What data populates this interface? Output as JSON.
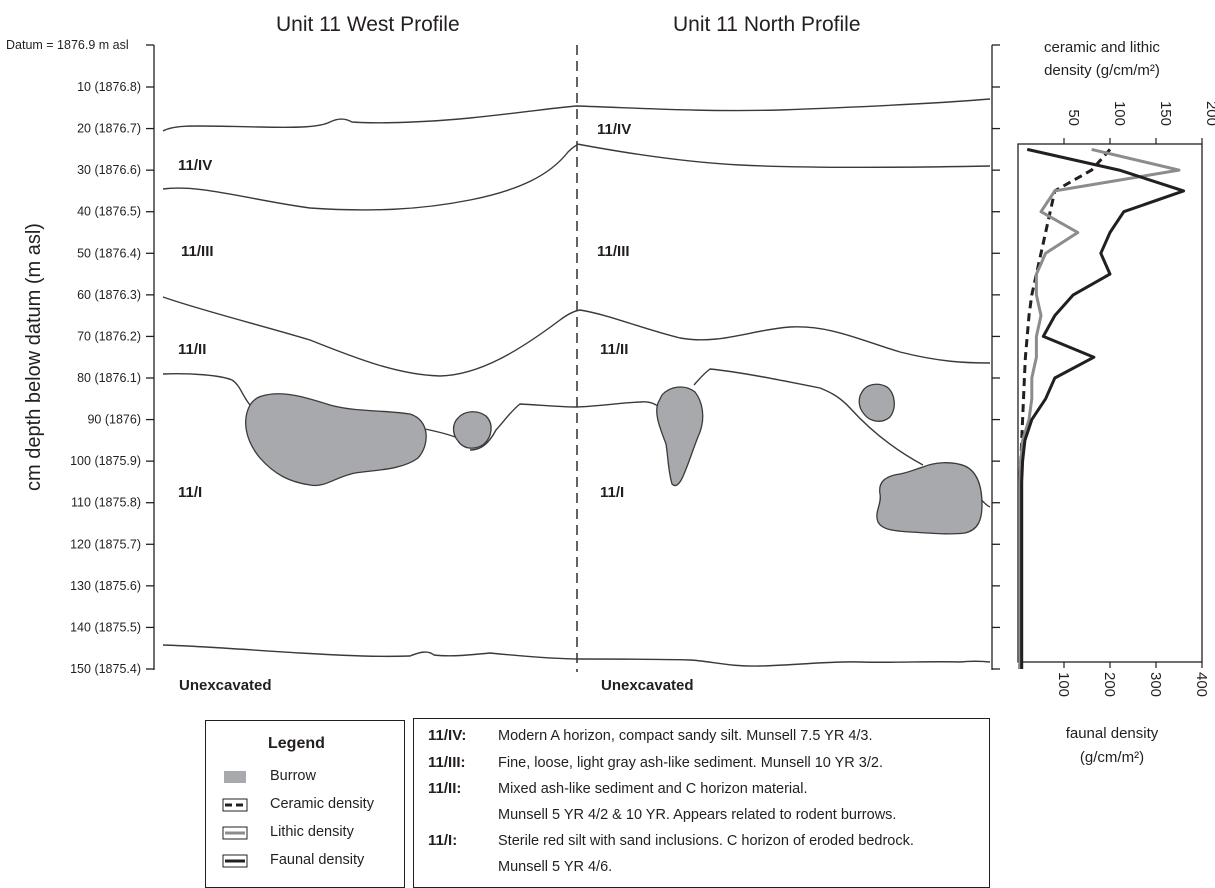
{
  "titles": {
    "west": "Unit 11    West Profile",
    "north": "Unit 11    North Profile"
  },
  "datum_label": "Datum = 1876.9 m asl",
  "y_axis_label": "cm depth below datum (m asl)",
  "depth_ticks": [
    "10 (1876.8)",
    "20 (1876.7)",
    "30 (1876.6)",
    "40 (1876.5)",
    "50 (1876.4)",
    "60 (1876.3)",
    "70 (1876.2)",
    "80 (1876.1)",
    "90 (1876)",
    "100 (1875.9)",
    "110 (1875.8)",
    "120 (1875.7)",
    "130 (1875.6)",
    "140 (1875.5)",
    "150 (1875.4)"
  ],
  "west_units": [
    "11/IV",
    "11/III",
    "11/II",
    "11/I"
  ],
  "north_units": [
    "11/IV",
    "11/III",
    "11/II",
    "11/I"
  ],
  "unexcavated_left": "Unexcavated",
  "unexcavated_right": "Unexcavated",
  "right_chart": {
    "top_label": "ceramic and lithic density (g/cm/m²)",
    "top_ticks": [
      "50",
      "100",
      "150",
      "200"
    ],
    "bottom_ticks": [
      "100",
      "200",
      "300",
      "400"
    ],
    "bottom_label": "faunal density (g/cm/m²)"
  },
  "legend": {
    "title": "Legend",
    "items": [
      {
        "label": "Burrow",
        "icon": "burrow-swatch-icon"
      },
      {
        "label": "Ceramic density",
        "icon": "dashed-line-icon"
      },
      {
        "label": "Lithic density",
        "icon": "gray-line-icon"
      },
      {
        "label": "Faunal density",
        "icon": "black-line-icon"
      }
    ]
  },
  "descriptions": [
    {
      "code": "11/IV:",
      "lines": [
        "Modern A horizon, compact sandy silt. Munsell 7.5 YR 4/3."
      ]
    },
    {
      "code": "11/III:",
      "lines": [
        "Fine, loose, light gray ash-like sediment. Munsell 10 YR 3/2."
      ]
    },
    {
      "code": "11/II:",
      "lines": [
        "Mixed ash-like sediment and C horizon material.",
        "Munsell 5 YR 4/2 & 10 YR. Appears related to rodent burrows."
      ]
    },
    {
      "code": "11/I:",
      "lines": [
        "Sterile red silt with sand inclusions. C horizon of eroded bedrock.",
        "Munsell 5 YR 4/6."
      ]
    }
  ],
  "colors": {
    "burrow": "#a7a9ac",
    "ceramic": "#231f20",
    "lithic": "#8c8c8c",
    "faunal": "#231f20"
  },
  "chart_data": {
    "type": "line",
    "depth_cm": [
      25,
      30,
      35,
      40,
      45,
      50,
      55,
      60,
      65,
      70,
      75,
      80,
      85,
      90,
      95,
      100,
      105,
      110,
      120,
      130,
      140,
      150
    ],
    "series": [
      {
        "name": "Ceramic density",
        "axis": "ceramic and lithic density (g/cm/m²)",
        "style": "dashed",
        "values": [
          100,
          80,
          40,
          35,
          30,
          25,
          20,
          15,
          12,
          10,
          8,
          7,
          6,
          5,
          4,
          3,
          2,
          2,
          2,
          2,
          2,
          2
        ]
      },
      {
        "name": "Lithic density",
        "axis": "ceramic and lithic density (g/cm/m²)",
        "style": "gray",
        "values": [
          80,
          175,
          40,
          25,
          65,
          30,
          20,
          20,
          25,
          20,
          20,
          15,
          15,
          12,
          5,
          3,
          2,
          2,
          2,
          2,
          2,
          2
        ]
      },
      {
        "name": "Faunal density",
        "axis": "faunal density (g/cm/m²)",
        "style": "black",
        "values": [
          20,
          220,
          360,
          230,
          200,
          180,
          200,
          120,
          80,
          55,
          165,
          80,
          60,
          30,
          15,
          10,
          8,
          8,
          8,
          8,
          8,
          8
        ]
      }
    ],
    "top_xlim": [
      0,
      200
    ],
    "bottom_xlim": [
      0,
      400
    ]
  }
}
